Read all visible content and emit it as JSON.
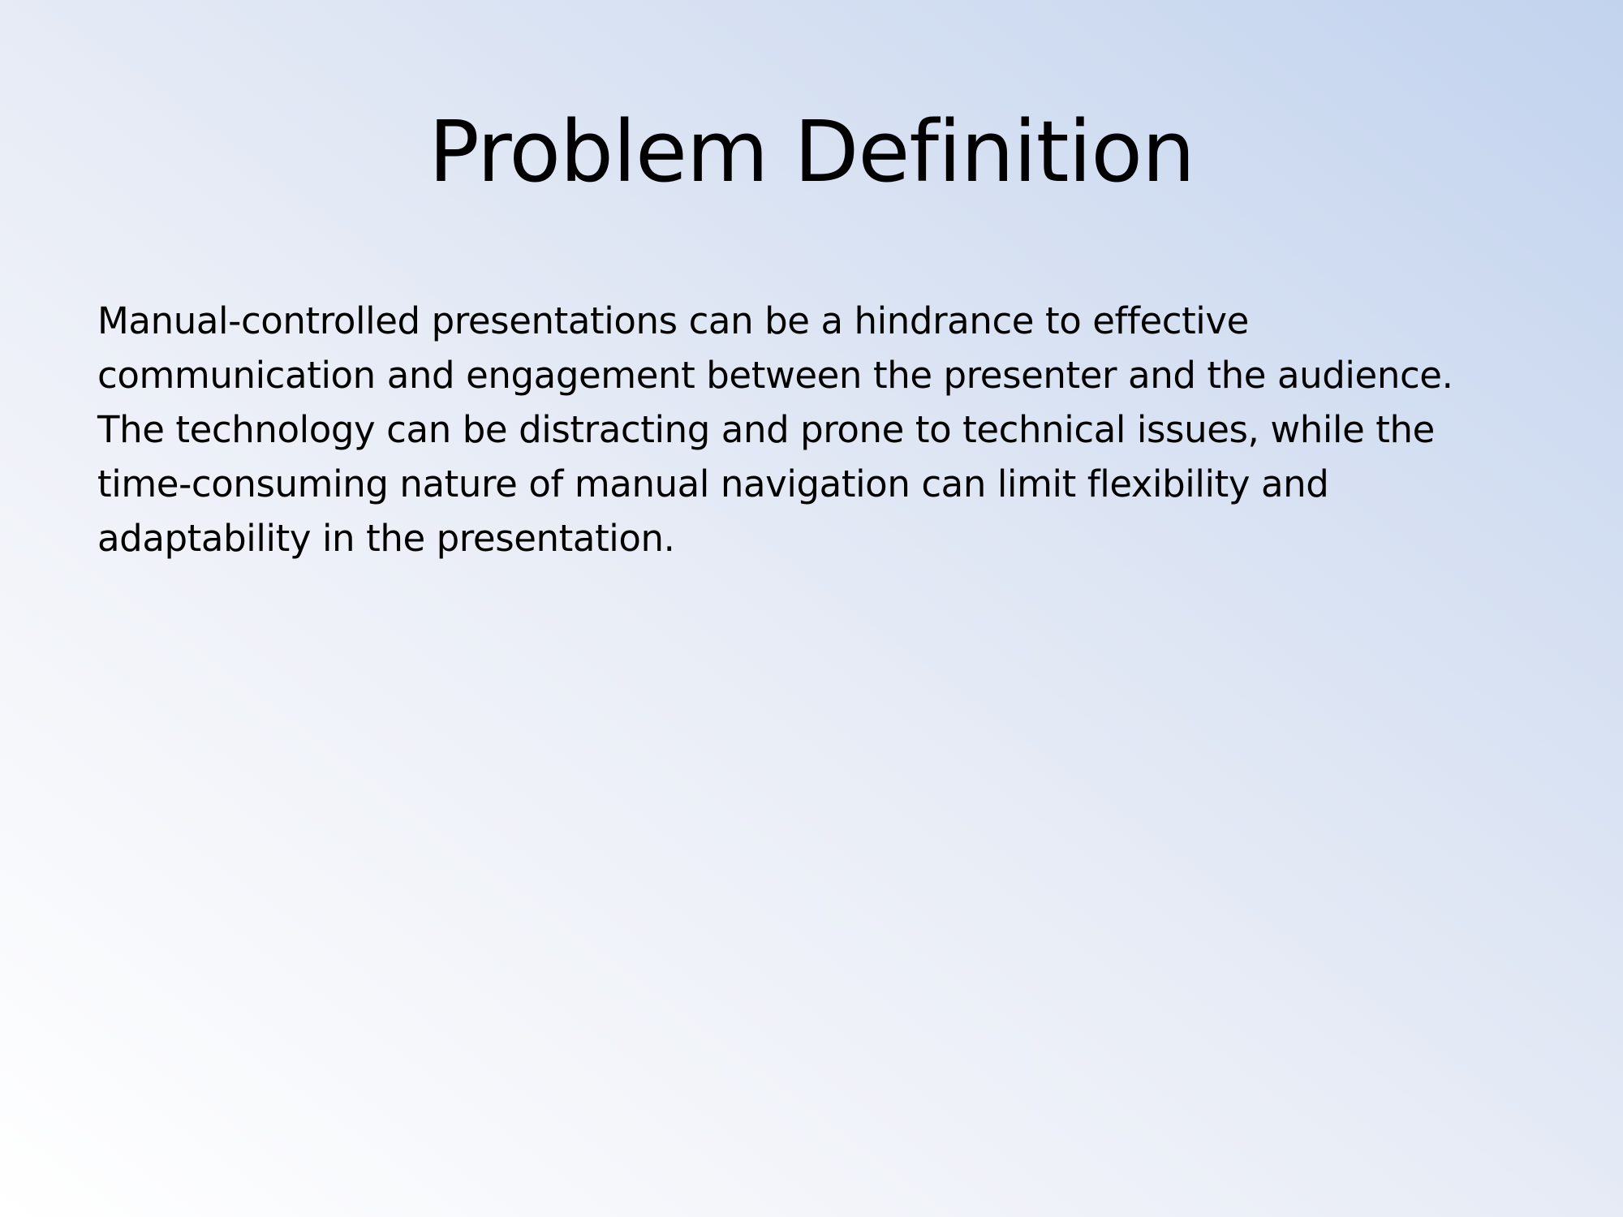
{
  "slide": {
    "title": "Problem Definition",
    "body_lines": [
      "Manual-controlled presentations can be a hindrance to effective",
      "communication and engagement between the presenter and the audience.",
      "The technology can be distracting and prone to technical issues, while the",
      "time-consuming nature of manual navigation can limit flexibility and",
      "adaptability in the presentation."
    ]
  },
  "colors": {
    "text": "#000000",
    "background_light": "#ffffff",
    "background_accent": "#c2d3ee"
  }
}
